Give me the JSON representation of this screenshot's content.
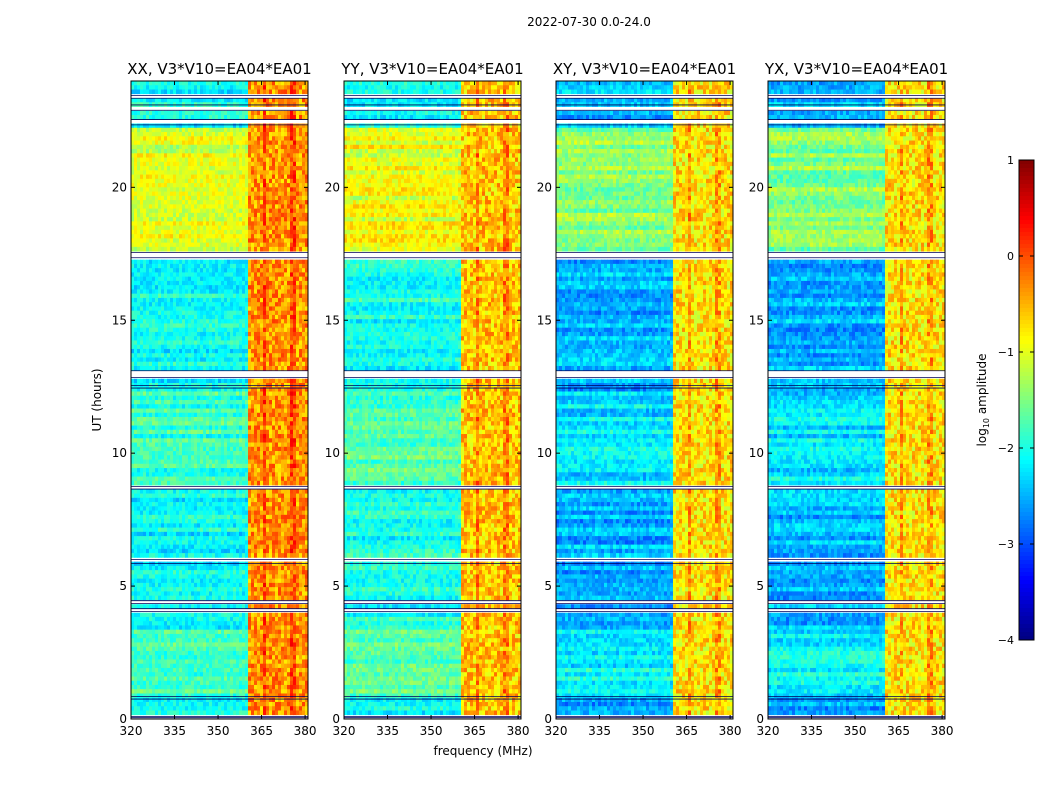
{
  "figure": {
    "suptitle": "2022-07-30 0.0-24.0",
    "xlabel": "frequency (MHz)",
    "ylabel": "UT (hours)",
    "colorbar_label": "log",
    "colorbar_label_sub": "10",
    "colorbar_label_rest": " amplitude"
  },
  "chart_data": {
    "type": "heatmap",
    "colormap": "jet",
    "xlim": [
      320,
      381
    ],
    "ylim": [
      0,
      24
    ],
    "xticks": [
      320,
      335,
      350,
      365,
      380
    ],
    "yticks": [
      0,
      5,
      10,
      15,
      20
    ],
    "colorbar": {
      "vmin": -4,
      "vmax": 1,
      "ticks": [
        -4,
        -3,
        -2,
        -1,
        0,
        1
      ],
      "tick_labels": [
        "−4",
        "−3",
        "−2",
        "−1",
        "0",
        "1"
      ]
    },
    "rfi_band_mhz": [
      360.5,
      380.5
    ],
    "blank_time_rows_hours": [
      [
        0.05,
        0.1
      ],
      [
        0.75,
        0.85
      ],
      [
        4.05,
        4.15
      ],
      [
        4.35,
        4.45
      ],
      [
        5.85,
        6.0
      ],
      [
        8.65,
        8.75
      ],
      [
        12.45,
        12.55
      ],
      [
        12.85,
        13.1
      ],
      [
        17.35,
        17.55
      ],
      [
        22.35,
        22.55
      ],
      [
        22.9,
        23.1
      ],
      [
        23.35,
        23.45
      ]
    ],
    "panels": [
      {
        "title": "XX, V3*V10=EA04*EA01",
        "baseline_level": -2.1,
        "rfi_level": -0.35
      },
      {
        "title": "YY, V3*V10=EA04*EA01",
        "baseline_level": -2.0,
        "rfi_level": -0.6
      },
      {
        "title": "XY, V3*V10=EA04*EA01",
        "baseline_level": -2.5,
        "rfi_level": -0.75
      },
      {
        "title": "YX, V3*V10=EA04*EA01",
        "baseline_level": -2.5,
        "rfi_level": -0.75
      }
    ]
  }
}
